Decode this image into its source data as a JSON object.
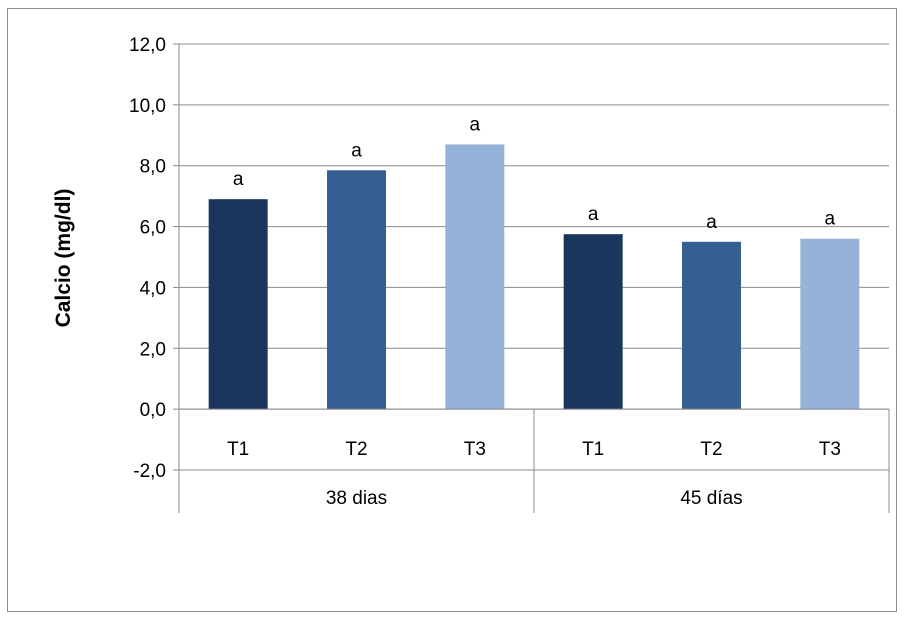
{
  "chart_data": {
    "type": "bar",
    "title": "",
    "xlabel": "",
    "ylabel": "Calcio (mg/dl)",
    "ylim": [
      -2.0,
      12.0
    ],
    "ytick_step": 2.0,
    "yticks": [
      "-2,0",
      "0,0",
      "2,0",
      "4,0",
      "6,0",
      "8,0",
      "10,0",
      "12,0"
    ],
    "grid": true,
    "legend": "none",
    "groups": [
      {
        "name": "38 dias",
        "categories": [
          "T1",
          "T2",
          "T3"
        ],
        "values": [
          6.9,
          7.85,
          8.7
        ],
        "labels": [
          "a",
          "a",
          "a"
        ]
      },
      {
        "name": "45 días",
        "categories": [
          "T1",
          "T2",
          "T3"
        ],
        "values": [
          5.75,
          5.5,
          5.6
        ],
        "labels": [
          "a",
          "a",
          "a"
        ]
      }
    ],
    "colors": {
      "T1": "#1b365d",
      "T2": "#355f93",
      "T3": "#95b2d8"
    }
  }
}
